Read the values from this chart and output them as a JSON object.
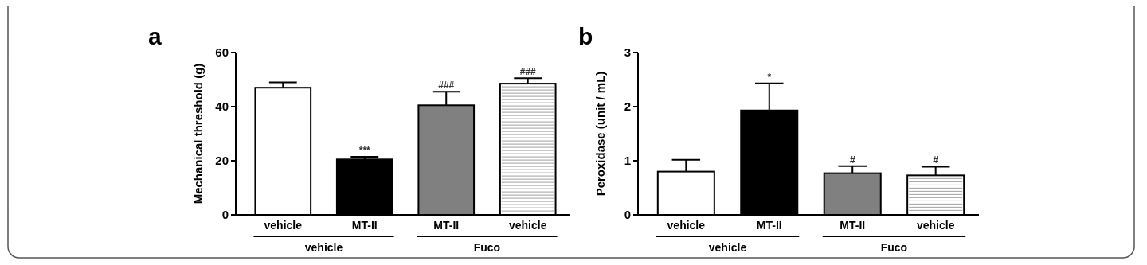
{
  "chart_data": [
    {
      "type": "bar",
      "title": "a",
      "ylabel": "Mechanical threshold (g)",
      "categories": [
        "vehicle",
        "MT-II",
        "MT-II",
        "vehicle"
      ],
      "values": [
        47,
        20.5,
        40.5,
        48.5
      ],
      "errors": [
        2,
        1,
        5,
        2
      ],
      "colors": [
        "#ffffff",
        "#000000",
        "#808080",
        "#ffffff"
      ],
      "value_labels": [
        null,
        "***",
        "###",
        "###"
      ],
      "ylim": [
        0,
        60
      ],
      "yticks": [
        0,
        20,
        40,
        60
      ],
      "annotations": [
        "vehicle",
        "Fuco"
      ]
    },
    {
      "type": "bar",
      "title": "b",
      "ylabel": "Peroxidase (unit / mL)",
      "categories": [
        "vehicle",
        "MT-II",
        "MT-II",
        "vehicle"
      ],
      "values": [
        0.8,
        1.93,
        0.77,
        0.73
      ],
      "errors": [
        0.22,
        0.5,
        0.13,
        0.16
      ],
      "colors": [
        "#ffffff",
        "#000000",
        "#808080",
        "#ffffff"
      ],
      "value_labels": [
        null,
        "*",
        "#",
        "#"
      ],
      "ylim": [
        0,
        3
      ],
      "yticks": [
        0,
        1,
        2,
        3
      ],
      "annotations": [
        "vehicle",
        "Fuco"
      ]
    }
  ]
}
